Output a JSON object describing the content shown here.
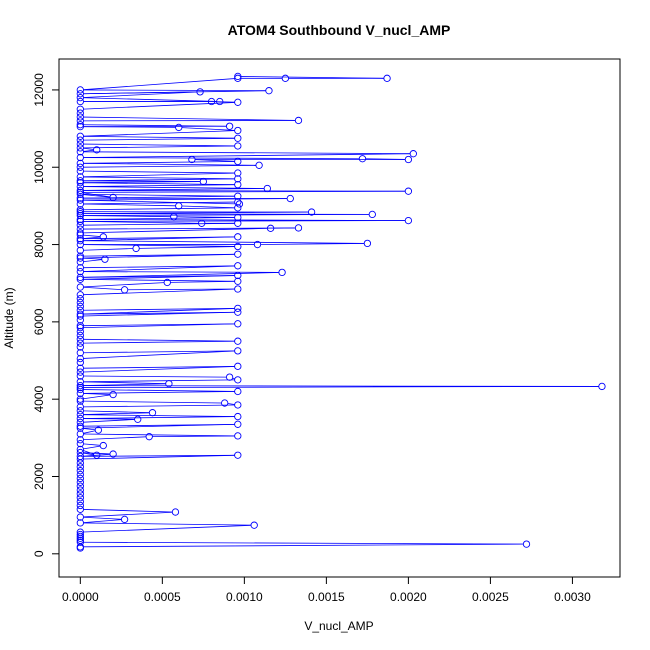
{
  "chart_data": {
    "type": "line",
    "title": "ATOM4 Southbound V_nucl_AMP",
    "xlabel": "V_nucl_AMP",
    "ylabel": "Altitude (m)",
    "xlim": [
      -0.00013,
      0.00329
    ],
    "ylim": [
      -600,
      12800
    ],
    "x_ticks": [
      {
        "value": 0.0,
        "label": "0.0000"
      },
      {
        "value": 0.0005,
        "label": "0.0005"
      },
      {
        "value": 0.001,
        "label": "0.0010"
      },
      {
        "value": 0.0015,
        "label": "0.0015"
      },
      {
        "value": 0.002,
        "label": "0.0020"
      },
      {
        "value": 0.0025,
        "label": "0.0025"
      },
      {
        "value": 0.003,
        "label": "0.0030"
      }
    ],
    "y_ticks": [
      {
        "value": 0,
        "label": "0"
      },
      {
        "value": 2000,
        "label": "2000"
      },
      {
        "value": 4000,
        "label": "4000"
      },
      {
        "value": 6000,
        "label": "6000"
      },
      {
        "value": 8000,
        "label": "8000"
      },
      {
        "value": 10000,
        "label": "10000"
      },
      {
        "value": 12000,
        "label": "12000"
      }
    ],
    "grid": false,
    "marker": "open-circle",
    "series_color": "#0000ff",
    "series": [
      {
        "points": [
          [
            0.0,
            150
          ],
          [
            0.0,
            180
          ],
          [
            0.00272,
            250
          ],
          [
            0.0,
            300
          ],
          [
            0.0,
            350
          ],
          [
            0.0,
            400
          ],
          [
            0.0,
            450
          ],
          [
            0.0,
            500
          ],
          [
            0.0,
            560
          ],
          [
            0.00106,
            740
          ],
          [
            0.0,
            800
          ],
          [
            0.00027,
            890
          ],
          [
            0.0,
            950
          ],
          [
            0.00058,
            1080
          ],
          [
            0.0,
            1150
          ],
          [
            0.0,
            1250
          ],
          [
            0.0,
            1350
          ],
          [
            0.0,
            1450
          ],
          [
            0.0,
            1550
          ],
          [
            0.0,
            1650
          ],
          [
            0.0,
            1750
          ],
          [
            0.0,
            1850
          ],
          [
            0.0,
            1950
          ],
          [
            0.0,
            2050
          ],
          [
            0.0,
            2150
          ],
          [
            0.0,
            2250
          ],
          [
            0.0,
            2350
          ],
          [
            0.0,
            2450
          ],
          [
            0.00096,
            2550
          ],
          [
            0.0,
            2520
          ],
          [
            0.0002,
            2580
          ],
          [
            0.0,
            2620
          ],
          [
            0.0001,
            2550
          ],
          [
            0.0,
            2700
          ],
          [
            0.00014,
            2800
          ],
          [
            0.0,
            2850
          ],
          [
            0.0,
            2950
          ],
          [
            0.00042,
            3030
          ],
          [
            0.00096,
            3050
          ],
          [
            0.0,
            3100
          ],
          [
            0.00011,
            3200
          ],
          [
            0.0,
            3250
          ],
          [
            0.00096,
            3350
          ],
          [
            0.0,
            3300
          ],
          [
            0.0,
            3400
          ],
          [
            0.00035,
            3480
          ],
          [
            0.0,
            3500
          ],
          [
            0.00096,
            3550
          ],
          [
            0.0,
            3600
          ],
          [
            0.00044,
            3650
          ],
          [
            0.0,
            3700
          ],
          [
            0.0,
            3800
          ],
          [
            0.00096,
            3850
          ],
          [
            0.00088,
            3900
          ],
          [
            0.0,
            3950
          ],
          [
            0.0,
            4000
          ],
          [
            0.0002,
            4120
          ],
          [
            0.0,
            4150
          ],
          [
            0.00096,
            4200
          ],
          [
            0.0,
            4250
          ],
          [
            0.0,
            4300
          ],
          [
            0.00318,
            4330
          ],
          [
            0.0,
            4350
          ],
          [
            0.00054,
            4400
          ],
          [
            0.0,
            4450
          ],
          [
            0.00096,
            4500
          ],
          [
            0.00091,
            4570
          ],
          [
            0.0,
            4600
          ],
          [
            0.0,
            4700
          ],
          [
            0.00096,
            4850
          ],
          [
            0.0,
            4800
          ],
          [
            0.0,
            4950
          ],
          [
            0.0,
            5050
          ],
          [
            0.00096,
            5250
          ],
          [
            0.0,
            5200
          ],
          [
            0.0,
            5350
          ],
          [
            0.0,
            5450
          ],
          [
            0.00096,
            5500
          ],
          [
            0.0,
            5550
          ],
          [
            0.0,
            5650
          ],
          [
            0.0,
            5750
          ],
          [
            0.0,
            5850
          ],
          [
            0.00096,
            5950
          ],
          [
            0.0,
            5900
          ],
          [
            0.0,
            6050
          ],
          [
            0.0,
            6150
          ],
          [
            0.00096,
            6250
          ],
          [
            0.0,
            6200
          ],
          [
            0.00096,
            6350
          ],
          [
            0.0,
            6300
          ],
          [
            0.0,
            6400
          ],
          [
            0.0,
            6500
          ],
          [
            0.0,
            6600
          ],
          [
            0.0,
            6700
          ],
          [
            0.00096,
            6850
          ],
          [
            0.00027,
            6830
          ],
          [
            0.0,
            6900
          ],
          [
            0.00053,
            7020
          ],
          [
            0.00096,
            7050
          ],
          [
            0.0,
            7100
          ],
          [
            0.00096,
            7200
          ],
          [
            0.0,
            7150
          ],
          [
            0.00123,
            7280
          ],
          [
            0.0,
            7300
          ],
          [
            0.00096,
            7450
          ],
          [
            0.0,
            7400
          ],
          [
            0.0,
            7550
          ],
          [
            0.00015,
            7620
          ],
          [
            0.0,
            7650
          ],
          [
            0.00096,
            7750
          ],
          [
            0.0,
            7700
          ],
          [
            0.0,
            7850
          ],
          [
            0.00034,
            7900
          ],
          [
            0.00096,
            7950
          ],
          [
            0.0,
            8000
          ],
          [
            0.00108,
            8000
          ],
          [
            0.00175,
            8030
          ],
          [
            0.0,
            8100
          ],
          [
            0.00096,
            8200
          ],
          [
            0.0,
            8150
          ],
          [
            0.00014,
            8200
          ],
          [
            0.0,
            8250
          ],
          [
            0.0,
            8300
          ],
          [
            0.00116,
            8420
          ],
          [
            0.00133,
            8430
          ],
          [
            0.0,
            8400
          ],
          [
            0.0,
            8500
          ],
          [
            0.00096,
            8550
          ],
          [
            0.00074,
            8550
          ],
          [
            0.0,
            8600
          ],
          [
            0.002,
            8620
          ],
          [
            0.0,
            8650
          ],
          [
            0.00096,
            8700
          ],
          [
            0.00057,
            8720
          ],
          [
            0.0,
            8750
          ],
          [
            0.00178,
            8780
          ],
          [
            0.0,
            8800
          ],
          [
            0.00141,
            8840
          ],
          [
            0.0,
            8850
          ],
          [
            0.0,
            8900
          ],
          [
            0.00096,
            8950
          ],
          [
            0.0006,
            9000
          ],
          [
            0.0,
            9050
          ],
          [
            0.00096,
            9100
          ],
          [
            0.00097,
            9050
          ],
          [
            0.0,
            9150
          ],
          [
            0.00128,
            9190
          ],
          [
            0.0,
            9200
          ],
          [
            0.00096,
            9250
          ],
          [
            0.0,
            9300
          ],
          [
            0.0002,
            9220
          ],
          [
            0.0,
            9350
          ],
          [
            0.002,
            9380
          ],
          [
            0.0,
            9400
          ],
          [
            0.00114,
            9450
          ],
          [
            0.0,
            9500
          ],
          [
            0.00096,
            9550
          ],
          [
            0.0,
            9600
          ],
          [
            0.00075,
            9630
          ],
          [
            0.0,
            9650
          ],
          [
            0.00096,
            9700
          ],
          [
            0.0,
            9750
          ],
          [
            0.00096,
            9850
          ],
          [
            0.0,
            9900
          ],
          [
            0.0,
            10000
          ],
          [
            0.00109,
            10050
          ],
          [
            0.0,
            10100
          ],
          [
            0.00096,
            10150
          ],
          [
            0.00068,
            10200
          ],
          [
            0.002,
            10200
          ],
          [
            0.00172,
            10220
          ],
          [
            0.0,
            10250
          ],
          [
            0.00203,
            10350
          ],
          [
            0.0,
            10400
          ],
          [
            0.0001,
            10450
          ],
          [
            0.0,
            10500
          ],
          [
            0.00096,
            10550
          ],
          [
            0.0,
            10600
          ],
          [
            0.0,
            10700
          ],
          [
            0.00096,
            10750
          ],
          [
            0.0,
            10800
          ],
          [
            0.00096,
            10950
          ],
          [
            0.0006,
            11030
          ],
          [
            0.0,
            11050
          ],
          [
            0.00091,
            11060
          ],
          [
            0.0,
            11100
          ],
          [
            0.0,
            11200
          ],
          [
            0.00133,
            11210
          ],
          [
            0.0,
            11300
          ],
          [
            0.0,
            11400
          ],
          [
            0.0,
            11500
          ],
          [
            0.00096,
            11680
          ],
          [
            0.0008,
            11700
          ],
          [
            0.0,
            11700
          ],
          [
            0.00085,
            11700
          ],
          [
            0.0,
            11800
          ],
          [
            0.00073,
            11950
          ],
          [
            0.0,
            11900
          ],
          [
            0.00115,
            11980
          ],
          [
            0.0,
            12000
          ],
          [
            0.00096,
            12300
          ],
          [
            0.00125,
            12300
          ],
          [
            0.00187,
            12300
          ],
          [
            0.00096,
            12350
          ]
        ]
      }
    ]
  }
}
